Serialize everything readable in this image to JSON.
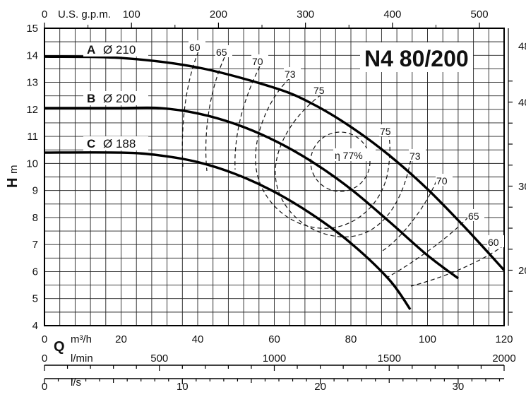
{
  "chart_data": {
    "type": "line",
    "title": "N4 80/200",
    "ylabel_main": "H",
    "ylabel_unit": "m",
    "x_primary": {
      "label_main": "Q",
      "label_unit": "m³/h",
      "range": [
        0,
        120
      ],
      "ticks": [
        "0",
        "20",
        "40",
        "60",
        "80",
        "100",
        "120"
      ]
    },
    "x_lmin": {
      "label": "l/min",
      "range": [
        0,
        2000
      ],
      "ticks": [
        "0",
        "500",
        "1000",
        "1500",
        "2000"
      ]
    },
    "x_ls": {
      "label": "l/s",
      "ticks": [
        "0",
        "10",
        "20",
        "30"
      ]
    },
    "x_gpm": {
      "label": "U.S. g.p.m.",
      "ticks": [
        "0",
        "100",
        "200",
        "300",
        "400",
        "500"
      ]
    },
    "y_primary": {
      "range": [
        4,
        15
      ],
      "ticks": [
        "4",
        "5",
        "6",
        "7",
        "8",
        "9",
        "10",
        "11",
        "12",
        "13",
        "14",
        "15"
      ]
    },
    "y_right_ticks": [
      "20",
      "30",
      "40",
      "48"
    ],
    "series": [
      {
        "name": "A",
        "diameter": "Ø 210",
        "q": [
          0,
          20,
          40,
          60,
          70,
          80,
          90,
          100,
          110,
          120
        ],
        "h": [
          13.95,
          13.9,
          13.55,
          12.8,
          12.2,
          11.35,
          10.3,
          9.05,
          7.6,
          6.05
        ]
      },
      {
        "name": "B",
        "diameter": "Ø 200",
        "q": [
          0,
          20,
          30,
          40,
          50,
          60,
          70,
          80,
          90,
          100,
          108
        ],
        "h": [
          12.05,
          12.05,
          12.05,
          11.85,
          11.45,
          10.85,
          10.05,
          9.05,
          7.85,
          6.6,
          5.75
        ]
      },
      {
        "name": "C",
        "diameter": "Ø 188",
        "q": [
          0,
          20,
          30,
          40,
          50,
          60,
          70,
          80,
          90,
          95.5
        ],
        "h": [
          10.4,
          10.4,
          10.3,
          10.05,
          9.6,
          8.95,
          8.1,
          7.05,
          5.7,
          4.6
        ]
      }
    ],
    "efficiency_labels": [
      "60",
      "65",
      "70",
      "73",
      "75",
      "η 77%",
      "75",
      "73",
      "70",
      "65",
      "60"
    ]
  }
}
